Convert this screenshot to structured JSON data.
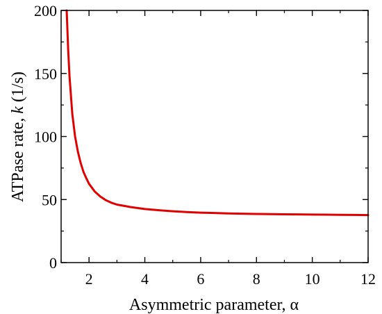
{
  "chart_data": {
    "type": "line",
    "xlabel": "Asymmetric parameter, α",
    "ylabel_parts": [
      "ATPase rate, ",
      "k",
      " (1/s)"
    ],
    "xlim": [
      1.0,
      12.0
    ],
    "ylim": [
      0,
      200
    ],
    "x_ticks": [
      2,
      4,
      6,
      8,
      10,
      12
    ],
    "y_ticks": [
      0,
      50,
      100,
      150,
      200
    ],
    "grid": false,
    "line_color": "#e00000",
    "series": [
      {
        "x": [
          1.2,
          1.25,
          1.3,
          1.4,
          1.5,
          1.6,
          1.7,
          1.8,
          1.9,
          2.0,
          2.2,
          2.4,
          2.6,
          2.8,
          3.0,
          3.5,
          4.0,
          4.5,
          5.0,
          5.5,
          6.0,
          6.5,
          7.0,
          7.5,
          8.0,
          8.5,
          9.0,
          9.5,
          10.0,
          10.5,
          11.0,
          11.5,
          12.0
        ],
        "values": [
          200,
          170,
          148,
          118,
          100,
          88,
          79,
          72,
          67,
          62.5,
          56.5,
          52.5,
          49.5,
          47.5,
          46,
          44,
          42.5,
          41.5,
          40.7,
          40.1,
          39.6,
          39.3,
          39.0,
          38.8,
          38.6,
          38.4,
          38.3,
          38.2,
          38.1,
          38.0,
          37.9,
          37.8,
          37.7
        ]
      }
    ]
  }
}
